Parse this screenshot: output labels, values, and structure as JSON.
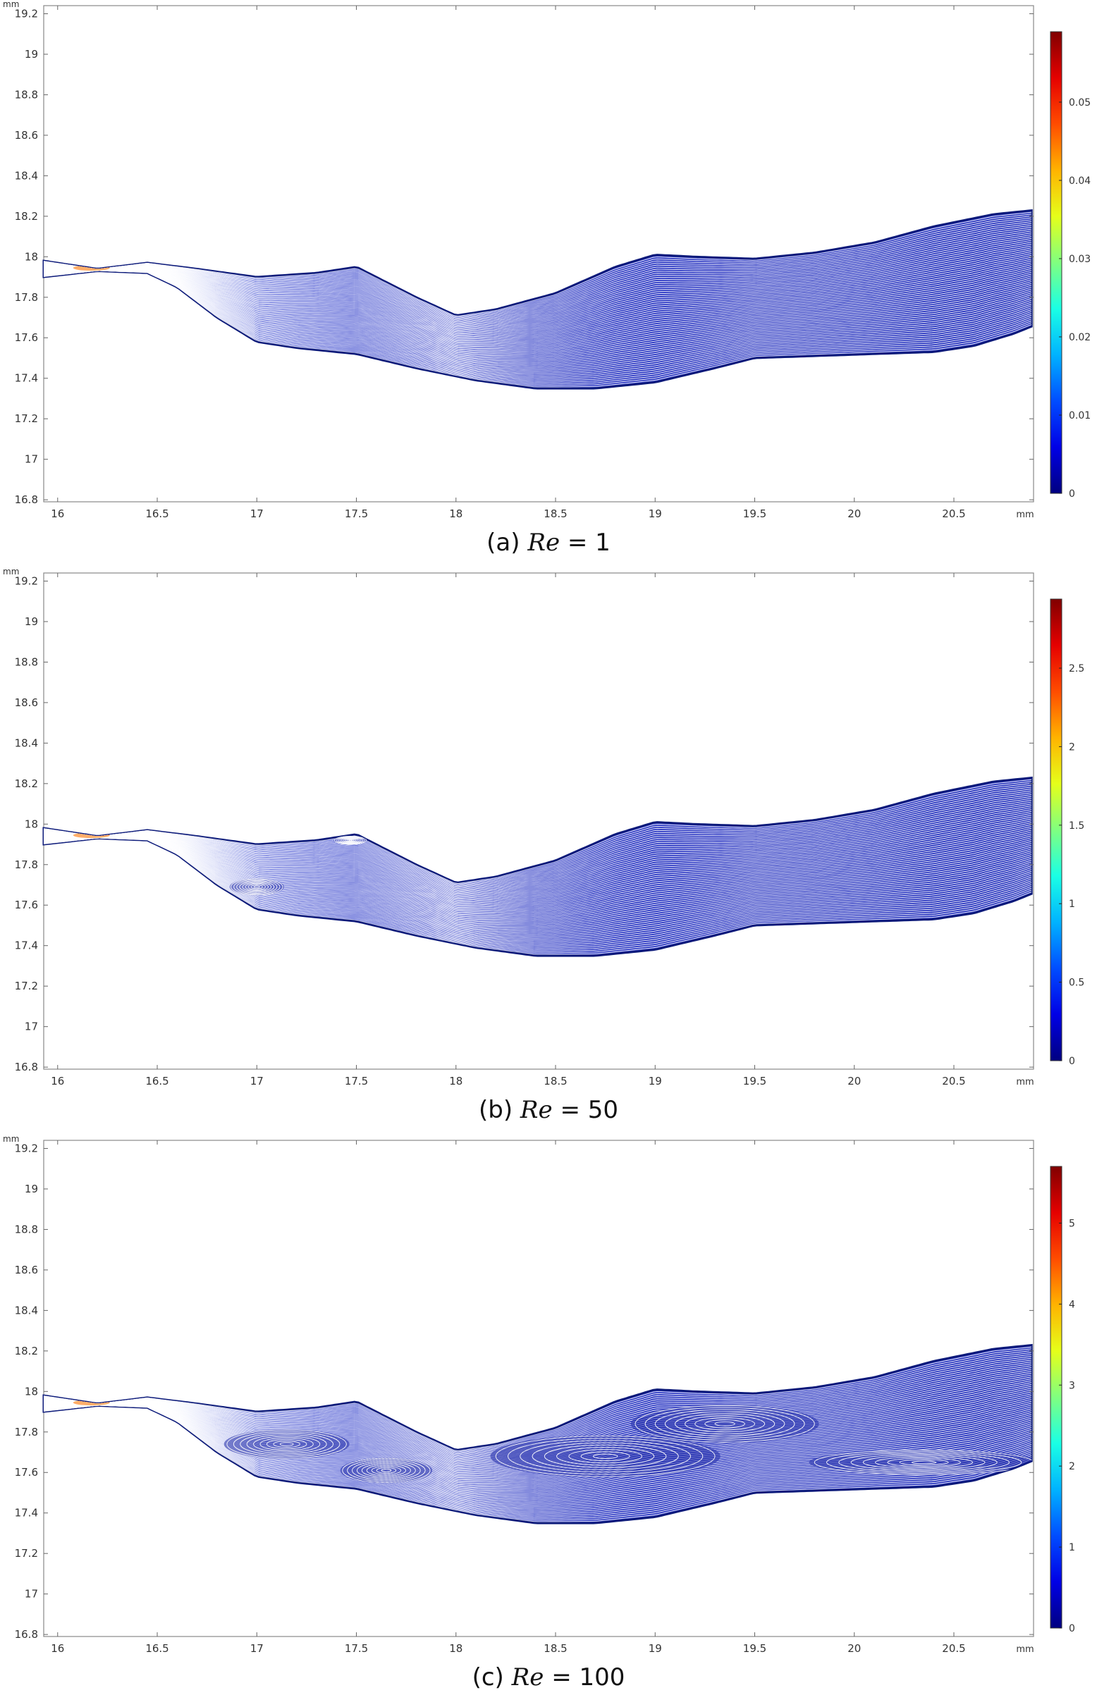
{
  "chart_data": [
    {
      "type": "streamline",
      "caption_prefix": "(a)",
      "caption_symbol": "Re",
      "caption_value": "= 1",
      "x_ticks": [
        "16",
        "16.5",
        "17",
        "17.5",
        "18",
        "18.5",
        "19",
        "19.5",
        "20",
        "20.5"
      ],
      "y_ticks": [
        "19.2",
        "19",
        "18.8",
        "18.6",
        "18.4",
        "18.2",
        "18",
        "17.8",
        "17.6",
        "17.4",
        "17.2",
        "17",
        "16.8"
      ],
      "x_unit": "mm",
      "y_unit": "mm",
      "xlim": [
        15.93,
        20.9
      ],
      "ylim": [
        16.79,
        19.24
      ],
      "colorbar": {
        "ticks": [
          "0.05",
          "0.04",
          "0.03",
          "0.02",
          "0.01",
          "0"
        ],
        "max": 0.059,
        "colormap": "jet"
      },
      "vortices": []
    },
    {
      "type": "streamline",
      "caption_prefix": "(b)",
      "caption_symbol": "Re",
      "caption_value": "= 50",
      "x_ticks": [
        "16",
        "16.5",
        "17",
        "17.5",
        "18",
        "18.5",
        "19",
        "19.5",
        "20",
        "20.5"
      ],
      "y_ticks": [
        "19.2",
        "19",
        "18.8",
        "18.6",
        "18.4",
        "18.2",
        "18",
        "17.8",
        "17.6",
        "17.4",
        "17.2",
        "17",
        "16.8"
      ],
      "x_unit": "mm",
      "y_unit": "mm",
      "xlim": [
        15.93,
        20.9
      ],
      "ylim": [
        16.79,
        19.24
      ],
      "colorbar": {
        "ticks": [
          "2.5",
          "2",
          "1.5",
          "1",
          "0.5",
          "0"
        ],
        "max": 2.94,
        "colormap": "jet"
      },
      "vortices": [
        {
          "x": 17.0,
          "y": 17.69,
          "rx": 0.13,
          "ry": 0.04
        },
        {
          "x": 17.47,
          "y": 17.92,
          "rx": 0.08,
          "ry": 0.02
        }
      ]
    },
    {
      "type": "streamline",
      "caption_prefix": "(c)",
      "caption_symbol": "Re",
      "caption_value": "= 100",
      "x_ticks": [
        "16",
        "16.5",
        "17",
        "17.5",
        "18",
        "18.5",
        "19",
        "19.5",
        "20",
        "20.5"
      ],
      "y_ticks": [
        "19.2",
        "19",
        "18.8",
        "18.6",
        "18.4",
        "18.2",
        "18",
        "17.8",
        "17.6",
        "17.4",
        "17.2",
        "17",
        "16.8"
      ],
      "x_unit": "mm",
      "y_unit": "mm",
      "xlim": [
        15.93,
        20.9
      ],
      "ylim": [
        16.79,
        19.24
      ],
      "colorbar": {
        "ticks": [
          "5",
          "4",
          "3",
          "2",
          "1",
          "0"
        ],
        "max": 5.7,
        "colormap": "jet"
      },
      "vortices": [
        {
          "x": 17.15,
          "y": 17.74,
          "rx": 0.3,
          "ry": 0.07
        },
        {
          "x": 17.65,
          "y": 17.61,
          "rx": 0.22,
          "ry": 0.06
        },
        {
          "x": 18.75,
          "y": 17.68,
          "rx": 0.55,
          "ry": 0.1
        },
        {
          "x": 19.35,
          "y": 17.84,
          "rx": 0.45,
          "ry": 0.09
        },
        {
          "x": 20.35,
          "y": 17.65,
          "rx": 0.55,
          "ry": 0.06
        }
      ]
    }
  ],
  "channel": {
    "upper_wall": [
      [
        15.93,
        17.98
      ],
      [
        16.2,
        17.94
      ],
      [
        16.45,
        17.97
      ],
      [
        16.7,
        17.94
      ],
      [
        17.0,
        17.9
      ],
      [
        17.3,
        17.92
      ],
      [
        17.5,
        17.95
      ],
      [
        17.6,
        17.9
      ],
      [
        17.8,
        17.8
      ],
      [
        18.0,
        17.71
      ],
      [
        18.2,
        17.74
      ],
      [
        18.5,
        17.82
      ],
      [
        18.8,
        17.95
      ],
      [
        19.0,
        18.01
      ],
      [
        19.2,
        18.0
      ],
      [
        19.5,
        17.99
      ],
      [
        19.8,
        18.02
      ],
      [
        20.1,
        18.07
      ],
      [
        20.4,
        18.15
      ],
      [
        20.7,
        18.21
      ],
      [
        20.9,
        18.23
      ]
    ],
    "lower_wall": [
      [
        15.93,
        17.9
      ],
      [
        16.2,
        17.93
      ],
      [
        16.45,
        17.92
      ],
      [
        16.6,
        17.85
      ],
      [
        16.8,
        17.7
      ],
      [
        17.0,
        17.58
      ],
      [
        17.2,
        17.55
      ],
      [
        17.5,
        17.52
      ],
      [
        17.8,
        17.45
      ],
      [
        18.1,
        17.39
      ],
      [
        18.4,
        17.35
      ],
      [
        18.7,
        17.35
      ],
      [
        19.0,
        17.38
      ],
      [
        19.3,
        17.45
      ],
      [
        19.5,
        17.5
      ],
      [
        19.8,
        17.51
      ],
      [
        20.1,
        17.52
      ],
      [
        20.4,
        17.53
      ],
      [
        20.6,
        17.56
      ],
      [
        20.8,
        17.62
      ],
      [
        20.9,
        17.66
      ]
    ]
  }
}
